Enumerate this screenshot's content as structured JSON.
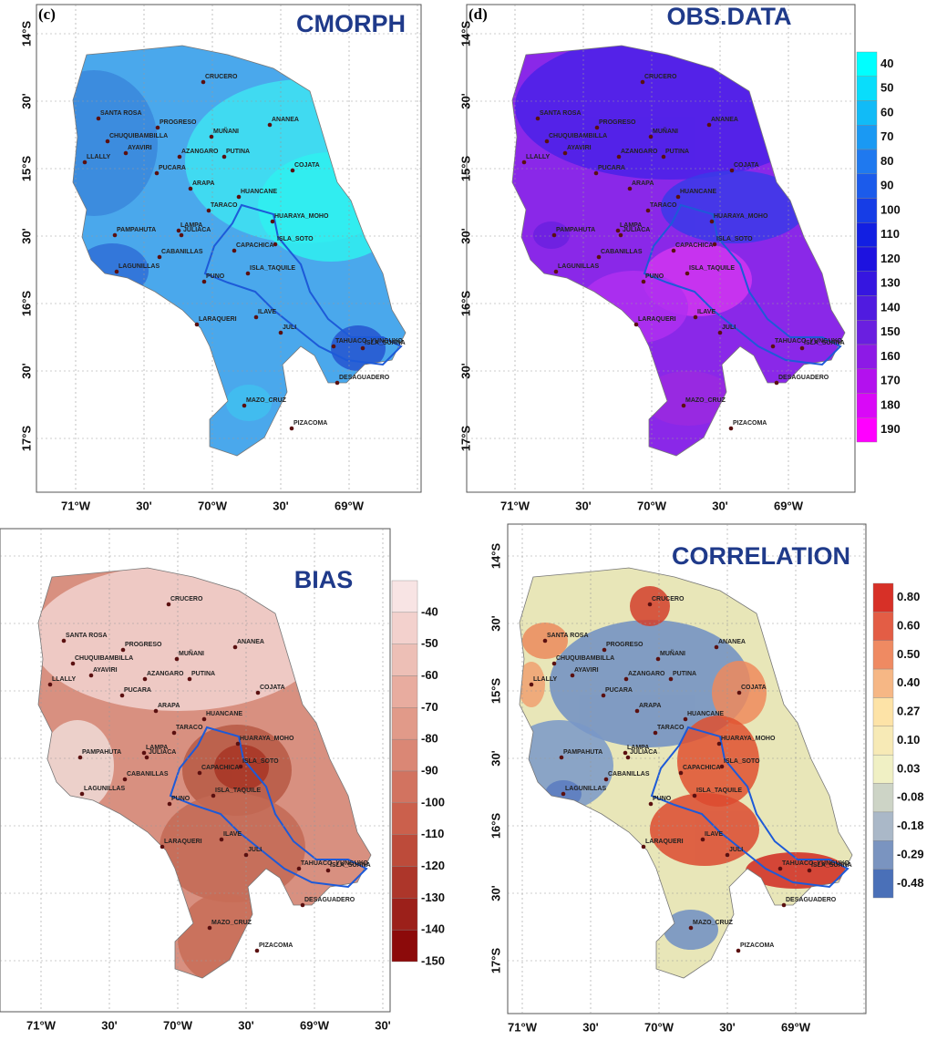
{
  "panels": [
    {
      "label": "(c)",
      "title": "CMORPH"
    },
    {
      "label": "(d)",
      "title": "OBS.DATA",
      "colorbar": [
        40,
        50,
        60,
        70,
        80,
        90,
        100,
        110,
        120,
        130,
        140,
        150,
        160,
        170,
        180,
        190
      ]
    },
    {
      "title": "BIAS",
      "colorbar": [
        -40,
        -50,
        -60,
        -70,
        -80,
        -90,
        -100,
        -110,
        -120,
        -130,
        -140,
        -150
      ]
    },
    {
      "title": "CORRELATION",
      "colorbar": [
        "0.80",
        "0.60",
        "0.50",
        "0.40",
        "0.27",
        "0.10",
        "0.03",
        "-0.08",
        "-0.18",
        "-0.29",
        "-0.48"
      ]
    }
  ],
  "lon_ticks": [
    "71°W",
    "30'",
    "70°W",
    "30'",
    "69°W",
    "30'"
  ],
  "lat_ticks": [
    "14°S",
    "30'",
    "15°S",
    "30'",
    "16°S",
    "30'",
    "17°S"
  ],
  "stations": [
    "CRUCERO",
    "ANANEA",
    "SANTA ROSA",
    "PROGRESO",
    "MUÑANI",
    "CHUQUIBAMBILLA",
    "AYAVIRI",
    "AZANGARO",
    "PUTINA",
    "LLALLY",
    "COJATA",
    "PUCARA",
    "ARAPA",
    "HUANCANE",
    "TARACO",
    "HUARAYA_MOHO",
    "PAMPAHUTA",
    "LAMPA",
    "JULIACA",
    "ISLA_SOTO",
    "CABANILLAS",
    "CAPACHICA",
    "LAGUNILLAS",
    "ISLA_TAQUILE",
    "PUNO",
    "ILAVE",
    "LARAQUERI",
    "JULI",
    "TAHUACO_YUNGUYO",
    "ISLA_SUANA",
    "DESAGUADERO",
    "MAZO_CRUZ",
    "PIZACOMA"
  ]
}
